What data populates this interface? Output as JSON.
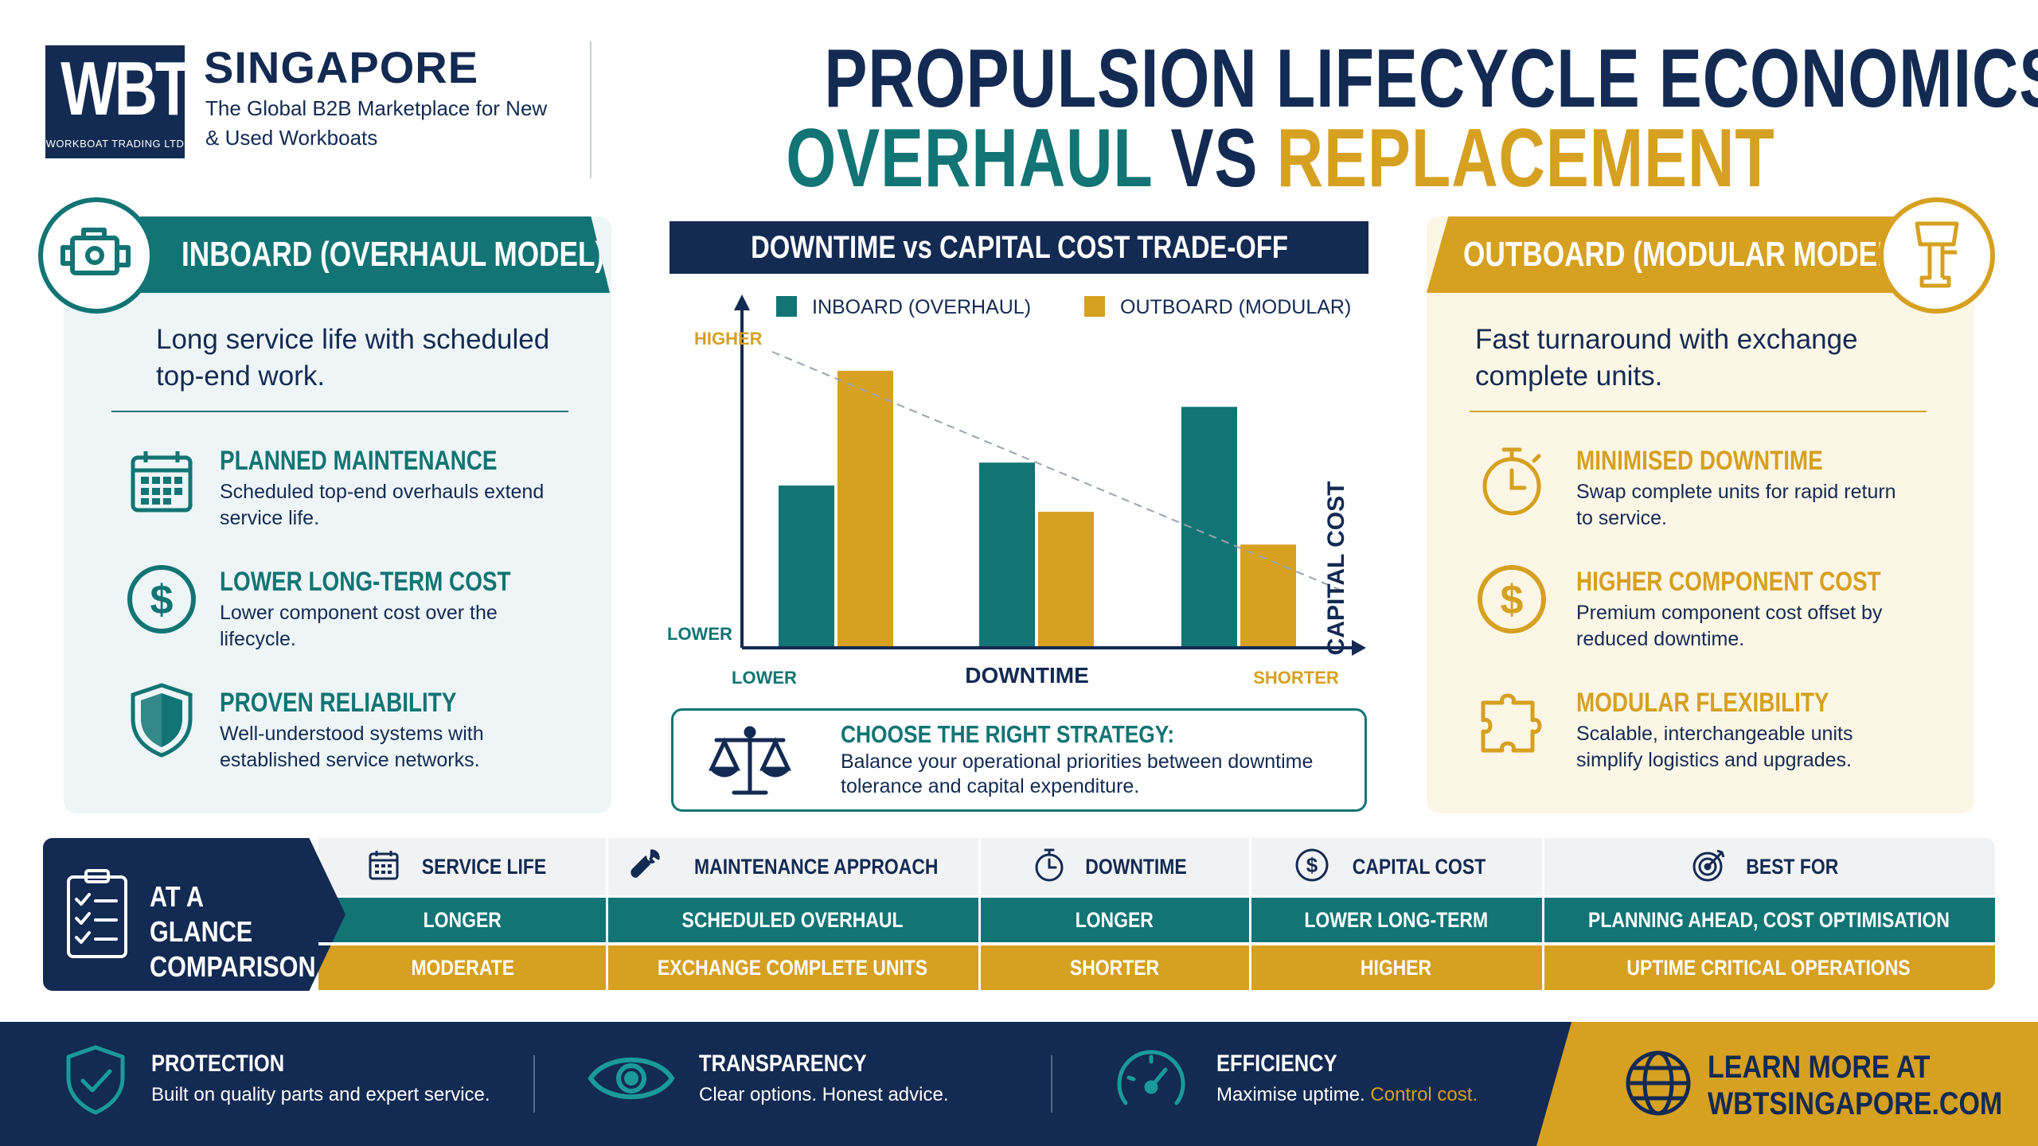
{
  "header": {
    "logo_text": "WBT",
    "logo_subtext": "WORKBOAT TRADING LTD",
    "brand_name": "SINGAPORE",
    "tagline": "The Global B2B Marketplace for New & Used Workboats",
    "title_line1": "PROPULSION LIFECYCLE ECONOMICS:",
    "title_word1": "OVERHAUL",
    "title_word2": "VS",
    "title_word3": "REPLACEMENT"
  },
  "colors": {
    "navy": "#132a52",
    "teal": "#127474",
    "gold": "#d6a021"
  },
  "inboard": {
    "title": "INBOARD (OVERHAUL MODEL)",
    "icon": "engine-icon",
    "intro": "Long service life with scheduled top-end work.",
    "features": [
      {
        "icon": "calendar-icon",
        "title": "PLANNED MAINTENANCE",
        "desc": "Scheduled top-end overhauls extend service life."
      },
      {
        "icon": "dollar-icon",
        "title": "LOWER LONG-TERM COST",
        "desc": "Lower component cost over the lifecycle."
      },
      {
        "icon": "shield-icon",
        "title": "PROVEN RELIABILITY",
        "desc": "Well-understood systems with established service networks."
      }
    ]
  },
  "outboard": {
    "title": "OUTBOARD (MODULAR MODEL)",
    "icon": "outboard-motor-icon",
    "intro": "Fast turnaround with exchange complete units.",
    "features": [
      {
        "icon": "stopwatch-icon",
        "title": "MINIMISED DOWNTIME",
        "desc": "Swap complete units for rapid return to service."
      },
      {
        "icon": "dollar-icon",
        "title": "HIGHER COMPONENT COST",
        "desc": "Premium component cost offset by reduced downtime."
      },
      {
        "icon": "puzzle-icon",
        "title": "MODULAR FLEXIBILITY",
        "desc": "Scalable, interchangeable units simplify logistics and upgrades."
      }
    ]
  },
  "chart_data": {
    "type": "bar",
    "title": "DOWNTIME vs CAPITAL COST TRADE-OFF",
    "xlabel": "DOWNTIME",
    "ylabel": "CAPITAL COST",
    "x_tick_left": "LOWER",
    "x_tick_right": "SHORTER",
    "y_tick_top": "HIGHER",
    "y_tick_bottom": "LOWER",
    "categories": [
      "",
      "",
      ""
    ],
    "series": [
      {
        "name": "INBOARD (OVERHAUL)",
        "color": "#127474",
        "values": [
          49,
          56,
          73
        ]
      },
      {
        "name": "OUTBOARD (MODULAR)",
        "color": "#d6a021",
        "values": [
          84,
          41,
          31
        ]
      }
    ],
    "ylim": [
      0,
      100
    ],
    "trend_line": true,
    "legend": "top"
  },
  "strategy": {
    "icon": "scales-icon",
    "title": "CHOOSE THE RIGHT STRATEGY:",
    "desc": "Balance your operational priorities between downtime tolerance and capital expenditure."
  },
  "comparison": {
    "label": "AT A GLANCE COMPARISON",
    "icon": "checklist-icon",
    "columns": [
      {
        "icon": "calendar-icon",
        "header": "SERVICE LIFE",
        "inboard": "LONGER",
        "outboard": "MODERATE"
      },
      {
        "icon": "wrench-icon",
        "header": "MAINTENANCE APPROACH",
        "inboard": "SCHEDULED OVERHAUL",
        "outboard": "EXCHANGE COMPLETE UNITS"
      },
      {
        "icon": "stopwatch-icon",
        "header": "DOWNTIME",
        "inboard": "LONGER",
        "outboard": "SHORTER"
      },
      {
        "icon": "dollar-icon",
        "header": "CAPITAL COST",
        "inboard": "LOWER LONG-TERM",
        "outboard": "HIGHER"
      },
      {
        "icon": "target-icon",
        "header": "BEST FOR",
        "inboard": "PLANNING AHEAD, COST OPTIMISATION",
        "outboard": "UPTIME CRITICAL OPERATIONS"
      }
    ]
  },
  "footer": {
    "items": [
      {
        "icon": "shield-check-icon",
        "title": "PROTECTION",
        "desc": "Built on quality parts and expert service."
      },
      {
        "icon": "eye-icon",
        "title": "TRANSPARENCY",
        "desc": "Clear options. Honest advice."
      },
      {
        "icon": "gauge-icon",
        "title": "EFFICIENCY",
        "desc": "Maximise uptime.",
        "desc_accent": "Control cost."
      }
    ],
    "cta_icon": "globe-icon",
    "cta_line1": "LEARN MORE AT",
    "cta_line2": "WBTSINGAPORE.COM"
  }
}
